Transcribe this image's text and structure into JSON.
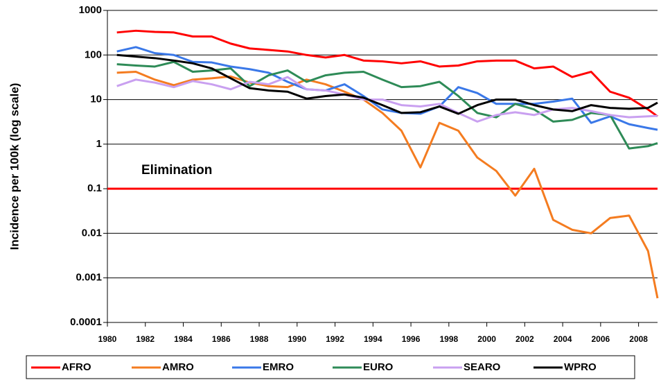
{
  "chart_data": {
    "type": "line",
    "y_label": "Incidence per 100k (log scale)",
    "y_log": true,
    "grid": true,
    "legend": "bottom",
    "xlim": [
      1980,
      2009
    ],
    "xticks": [
      1980,
      1982,
      1984,
      1986,
      1988,
      1990,
      1992,
      1994,
      1996,
      1998,
      2000,
      2002,
      2004,
      2006,
      2008
    ],
    "ylim": [
      0.0001,
      1000
    ],
    "yticks": [
      0.0001,
      0.001,
      0.01,
      0.1,
      1,
      10,
      100,
      1000
    ],
    "reference_line": {
      "value": 0.1,
      "label": "Elimination",
      "color": "#ff0000"
    },
    "x": [
      1980.5,
      1981.5,
      1982.5,
      1983.5,
      1984.5,
      1985.5,
      1986.5,
      1987.5,
      1988.5,
      1989.5,
      1990.5,
      1991.5,
      1992.5,
      1993.5,
      1994.5,
      1995.5,
      1996.5,
      1997.5,
      1998.5,
      1999.5,
      2000.5,
      2001.5,
      2002.5,
      2003.5,
      2004.5,
      2005.5,
      2006.5,
      2007.5,
      2008.5,
      2009
    ],
    "series": [
      {
        "name": "AFRO",
        "color": "#ff0000",
        "values": [
          320,
          350,
          330,
          320,
          260,
          260,
          180,
          140,
          130,
          120,
          100,
          88,
          100,
          75,
          72,
          65,
          72,
          55,
          58,
          72,
          75,
          75,
          50,
          55,
          32,
          42,
          15,
          11,
          6,
          4.2
        ]
      },
      {
        "name": "AMRO",
        "color": "#f47c20",
        "values": [
          40,
          42,
          28,
          21,
          28,
          30,
          33,
          24,
          20,
          19,
          28,
          22,
          15,
          10,
          5,
          2,
          0.3,
          3,
          2,
          0.5,
          0.25,
          0.07,
          0.28,
          0.02,
          0.012,
          0.01,
          0.022,
          0.025,
          0.004,
          0.00035
        ]
      },
      {
        "name": "EMRO",
        "color": "#3a78e8",
        "values": [
          120,
          150,
          110,
          100,
          70,
          68,
          55,
          48,
          40,
          25,
          17,
          16,
          22,
          12,
          6,
          5,
          4.8,
          7,
          19,
          14,
          8,
          8,
          8,
          9,
          10.5,
          3,
          4.2,
          2.8,
          2.3,
          2.1
        ]
      },
      {
        "name": "EURO",
        "color": "#2e8b57",
        "values": [
          62,
          58,
          55,
          70,
          42,
          45,
          50,
          20,
          35,
          45,
          25,
          35,
          40,
          42,
          28,
          19,
          20,
          25,
          12,
          5,
          4,
          8,
          6,
          3.2,
          3.5,
          5,
          4.5,
          0.8,
          0.9,
          1.05
        ]
      },
      {
        "name": "SEARO",
        "color": "#c9a0f0",
        "values": [
          20,
          28,
          24,
          19,
          26,
          22,
          17,
          25,
          22,
          32,
          17,
          16,
          13,
          10,
          10,
          7.5,
          7,
          8,
          5,
          3.2,
          4.5,
          5.2,
          4.5,
          6,
          6.5,
          5.5,
          4.5,
          4,
          4.2,
          4.3
        ]
      },
      {
        "name": "WPRO",
        "color": "#000000",
        "values": [
          100,
          92,
          85,
          75,
          65,
          50,
          30,
          18,
          16,
          15,
          10.5,
          12,
          13,
          11,
          7.5,
          5,
          5.2,
          7,
          4.8,
          7.5,
          10,
          10,
          7.5,
          6,
          5.5,
          7.5,
          6.5,
          6.2,
          6.5,
          8.5
        ]
      }
    ]
  }
}
